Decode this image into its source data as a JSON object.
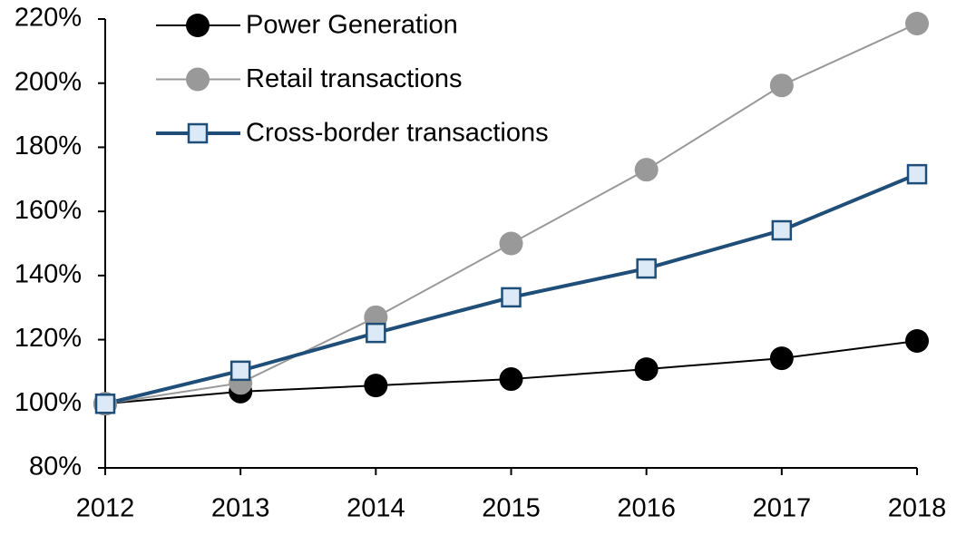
{
  "chart_data": {
    "type": "line",
    "x": [
      2012,
      2013,
      2014,
      2015,
      2016,
      2017,
      2018
    ],
    "xlim": [
      2012,
      2018
    ],
    "xticks": [
      2012,
      2013,
      2014,
      2015,
      2016,
      2017,
      2018
    ],
    "ylim": [
      80,
      220
    ],
    "yticks": [
      {
        "value": 80,
        "label": "80%"
      },
      {
        "value": 100,
        "label": "100%"
      },
      {
        "value": 120,
        "label": "120%"
      },
      {
        "value": 140,
        "label": "140%"
      },
      {
        "value": 160,
        "label": "160%"
      },
      {
        "value": 180,
        "label": "180%"
      },
      {
        "value": 200,
        "label": "200%"
      },
      {
        "value": 220,
        "label": "220%"
      }
    ],
    "grid": false,
    "legend": "top-left",
    "series": [
      {
        "name": "Power Generation",
        "color": "#000000",
        "marker": "circle",
        "line_width": 2,
        "values": [
          100,
          103.8,
          105.7,
          107.7,
          110.8,
          114.2,
          119.6
        ]
      },
      {
        "name": "Retail transactions",
        "color": "#999999",
        "marker": "circle",
        "line_width": 2,
        "values": [
          100,
          106.5,
          127,
          150,
          173,
          199.3,
          218.6
        ]
      },
      {
        "name": "Cross-border transactions",
        "color": "#1f4e79",
        "marker": "square",
        "line_width": 4,
        "values": [
          100,
          110.3,
          122.1,
          133.2,
          142.2,
          154.1,
          171.6
        ]
      }
    ]
  }
}
